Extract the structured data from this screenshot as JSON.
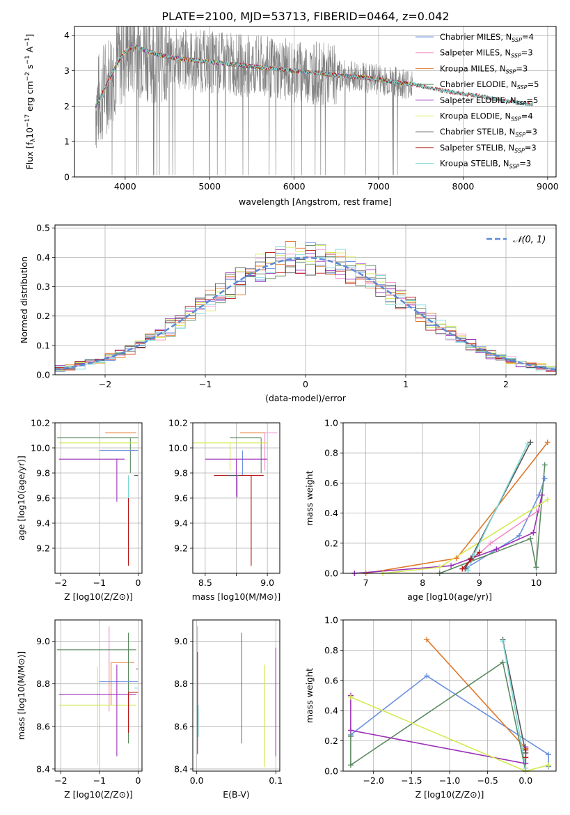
{
  "figure": {
    "title": "PLATE=2100, MJD=53713, FIBERID=0464, z=0.042"
  },
  "colors": {
    "Chabrier MILES": "#6a8fe0",
    "Salpeter MILES": "#f08fc8",
    "Kroupa MILES": "#e0782a",
    "Chabrier ELODIE": "#5a8a60",
    "Salpeter ELODIE": "#9b30b8",
    "Kroupa ELODIE": "#d4ea50",
    "Chabrier STELIB": "#555555",
    "Salpeter STELIB": "#b81818",
    "Kroupa STELIB": "#7fd8d8",
    "data": "#808080",
    "normal": "#5b8ad6",
    "grid": "#b0b0b0"
  },
  "chart_data": [
    {
      "id": "spectrum",
      "type": "line",
      "xlabel": "wavelength [Angstrom, rest frame]",
      "ylabel": "Flux [f_λ 10^-17 erg cm^-2 s^-1 A^-1]",
      "xlim": [
        3400,
        9100
      ],
      "ylim": [
        0,
        4.25
      ],
      "xticks": [
        4000,
        5000,
        6000,
        7000,
        8000,
        9000
      ],
      "yticks": [
        0,
        1,
        2,
        3,
        4
      ],
      "legend_position": "top-right",
      "legend": [
        {
          "model": "Chabrier MILES",
          "label": "Chabrier MILES, N",
          "sub": "SSP",
          "tail": "=4"
        },
        {
          "model": "Salpeter MILES",
          "label": "Salpeter MILES, N",
          "sub": "SSP",
          "tail": "=3"
        },
        {
          "model": "Kroupa MILES",
          "label": "Kroupa MILES, N",
          "sub": "SSP",
          "tail": "=3"
        },
        {
          "model": "Chabrier ELODIE",
          "label": "Chabrier ELODIE, N",
          "sub": "SSP",
          "tail": "=5"
        },
        {
          "model": "Salpeter ELODIE",
          "label": "Salpeter ELODIE, N",
          "sub": "SSP",
          "tail": "=5"
        },
        {
          "model": "Kroupa ELODIE",
          "label": "Kroupa ELODIE, N",
          "sub": "SSP",
          "tail": "=4"
        },
        {
          "model": "Chabrier STELIB",
          "label": "Chabrier STELIB, N",
          "sub": "SSP",
          "tail": "=3"
        },
        {
          "model": "Salpeter STELIB",
          "label": "Salpeter STELIB, N",
          "sub": "SSP",
          "tail": "=3"
        },
        {
          "model": "Kroupa STELIB",
          "label": "Kroupa STELIB, N",
          "sub": "SSP",
          "tail": "=3"
        }
      ],
      "continuum": {
        "x": [
          3650,
          3700,
          3800,
          3900,
          4000,
          4100,
          4200,
          4400,
          4600,
          4800,
          5000,
          5200,
          5400,
          5600,
          5800,
          6000,
          6200,
          6400,
          6600,
          6800,
          7000,
          7200,
          7400,
          7600,
          7800,
          8000,
          8200,
          8400,
          8600,
          8800
        ],
        "y": [
          2.0,
          2.2,
          2.7,
          3.2,
          3.55,
          3.7,
          3.6,
          3.45,
          3.35,
          3.3,
          3.25,
          3.2,
          3.15,
          3.1,
          3.05,
          3.0,
          2.95,
          2.9,
          2.85,
          2.82,
          2.75,
          2.68,
          2.62,
          2.52,
          2.42,
          2.35,
          2.28,
          2.2,
          2.12,
          2.05
        ]
      },
      "data_noise": 0.9,
      "data_range": [
        3650,
        7400
      ]
    },
    {
      "id": "residuals",
      "type": "line",
      "xlabel": "(data-model)/error",
      "ylabel": "Normed distribution",
      "xlim": [
        -2.5,
        2.5
      ],
      "ylim": [
        0,
        0.51
      ],
      "xticks": [
        -2,
        -1,
        0,
        1,
        2
      ],
      "yticks": [
        0.0,
        0.1,
        0.2,
        0.3,
        0.4,
        0.5
      ],
      "legend_position": "top-right",
      "legend_label": "𝒩(0, 1)",
      "bin_width": 0.1
    },
    {
      "id": "age-vs-z",
      "type": "scatter",
      "xlabel": "Z [log10(Z/Z⊙)]",
      "ylabel": "age  [log10(age/yr)]",
      "xlim": [
        -2.15,
        0.1
      ],
      "ylim": [
        9.0,
        10.2
      ],
      "xticks": [
        -2,
        -1,
        0
      ],
      "yticks": [
        9.2,
        9.4,
        9.6,
        9.8,
        10.0,
        10.2
      ],
      "points": [
        {
          "model": "Chabrier ELODIE",
          "x": -0.2,
          "xerr": [
            1.9,
            0.2
          ],
          "y": 10.08,
          "yerr": [
            0.28,
            0.0
          ]
        },
        {
          "model": "Kroupa MILES",
          "x": -0.45,
          "xerr": [
            0.4,
            0.4
          ],
          "y": 10.12,
          "yerr": [
            0.0,
            0.0
          ]
        },
        {
          "model": "Kroupa ELODIE",
          "x": -1.0,
          "xerr": [
            1.05,
            1.0
          ],
          "y": 10.04,
          "yerr": [
            0.22,
            0.0
          ]
        },
        {
          "model": "Chabrier MILES",
          "x": -0.5,
          "xerr": [
            0.5,
            0.5
          ],
          "y": 9.98,
          "yerr": [
            0.0,
            0.0
          ]
        },
        {
          "model": "Salpeter ELODIE",
          "x": -0.55,
          "xerr": [
            1.5,
            0.2
          ],
          "y": 9.91,
          "yerr": [
            0.34,
            0.0
          ]
        },
        {
          "model": "Salpeter STELIB",
          "x": -0.25,
          "xerr": [
            0.0,
            0.0
          ],
          "y": 9.78,
          "yerr": [
            0.72,
            0.0
          ]
        },
        {
          "model": "Chabrier STELIB",
          "x": -0.1,
          "xerr": [
            0.0,
            0.1
          ],
          "y": 9.78,
          "yerr": [
            0.0,
            0.0
          ]
        },
        {
          "model": "Kroupa STELIB",
          "x": -0.25,
          "xerr": [
            0.0,
            0.0
          ],
          "y": 9.78,
          "yerr": [
            0.18,
            0.0
          ]
        }
      ]
    },
    {
      "id": "age-vs-mass",
      "type": "scatter",
      "xlabel": "mass [log10(M/M⊙)]",
      "ylabel": "",
      "xlim": [
        8.4,
        9.1
      ],
      "ylim": [
        9.0,
        10.2
      ],
      "xticks": [
        8.5,
        8.75,
        9.0
      ],
      "xticklabels": [
        "8.5",
        "",
        "9.0"
      ],
      "yticks": [
        9.2,
        9.4,
        9.6,
        9.8,
        10.0,
        10.2
      ],
      "points": [
        {
          "model": "Salpeter MILES",
          "x": 8.98,
          "xerr": [
            0.0,
            0.1
          ],
          "y": 10.12,
          "yerr": [
            0.3,
            0.0
          ]
        },
        {
          "model": "Kroupa MILES",
          "x": 8.88,
          "xerr": [
            0.1,
            0.1
          ],
          "y": 10.12,
          "yerr": [
            0.0,
            0.0
          ]
        },
        {
          "model": "Chabrier ELODIE",
          "x": 8.95,
          "xerr": [
            0.25,
            0.0
          ],
          "y": 10.08,
          "yerr": [
            0.28,
            0.0
          ]
        },
        {
          "model": "Kroupa ELODIE",
          "x": 8.7,
          "xerr": [
            0.3,
            0.3
          ],
          "y": 10.04,
          "yerr": [
            0.22,
            0.0
          ]
        },
        {
          "model": "Chabrier MILES",
          "x": 8.8,
          "xerr": [
            0.0,
            0.0
          ],
          "y": 9.98,
          "yerr": [
            0.2,
            0.0
          ]
        },
        {
          "model": "Salpeter ELODIE",
          "x": 8.75,
          "xerr": [
            0.25,
            0.25
          ],
          "y": 9.91,
          "yerr": [
            0.3,
            0.0
          ]
        },
        {
          "model": "Salpeter STELIB",
          "x": 8.87,
          "xerr": [
            0.3,
            0.1
          ],
          "y": 9.78,
          "yerr": [
            0.72,
            0.0
          ]
        },
        {
          "model": "Chabrier STELIB",
          "x": 8.78,
          "xerr": [
            0.1,
            0.0
          ],
          "y": 9.78,
          "yerr": [
            0.0,
            0.0
          ]
        },
        {
          "model": "Kroupa STELIB",
          "x": 8.76,
          "xerr": [
            0.0,
            0.0
          ],
          "y": 9.78,
          "yerr": [
            0.18,
            0.0
          ]
        }
      ]
    },
    {
      "id": "weight-vs-age",
      "type": "line",
      "xlabel": "age  [log10(age/yr)]",
      "ylabel": "mass weight",
      "xlim": [
        6.6,
        10.35
      ],
      "ylim": [
        0,
        1.0
      ],
      "xticks": [
        7,
        8,
        9,
        10
      ],
      "yticks": [
        0.0,
        0.2,
        0.4,
        0.6,
        0.8,
        1.0
      ],
      "series": [
        {
          "model": "Chabrier MILES",
          "x": [
            8.75,
            9.7,
            10.05,
            10.15
          ],
          "y": [
            0.03,
            0.25,
            0.52,
            0.63
          ]
        },
        {
          "model": "Salpeter MILES",
          "x": [
            8.7,
            9.2,
            10.05
          ],
          "y": [
            0.03,
            0.2,
            0.42
          ]
        },
        {
          "model": "Kroupa MILES",
          "x": [
            7.0,
            8.6,
            10.2
          ],
          "y": [
            0.0,
            0.1,
            0.87
          ]
        },
        {
          "model": "Chabrier ELODIE",
          "x": [
            8.3,
            9.9,
            10.0,
            10.15
          ],
          "y": [
            0.0,
            0.23,
            0.04,
            0.72
          ]
        },
        {
          "model": "Salpeter ELODIE",
          "x": [
            6.8,
            8.5,
            9.3,
            9.95,
            10.1
          ],
          "y": [
            0.0,
            0.05,
            0.16,
            0.27,
            0.52
          ]
        },
        {
          "model": "Kroupa ELODIE",
          "x": [
            7.3,
            8.3,
            10.2
          ],
          "y": [
            0.0,
            0.04,
            0.49
          ]
        },
        {
          "model": "Chabrier STELIB",
          "x": [
            8.75,
            8.85,
            9.9
          ],
          "y": [
            0.03,
            0.1,
            0.87
          ]
        },
        {
          "model": "Salpeter STELIB",
          "x": [
            8.7,
            8.85,
            9.0
          ],
          "y": [
            0.03,
            0.09,
            0.14
          ]
        },
        {
          "model": "Kroupa STELIB",
          "x": [
            8.8,
            8.9,
            9.85
          ],
          "y": [
            0.02,
            0.12,
            0.86
          ]
        }
      ]
    },
    {
      "id": "mass-vs-z",
      "type": "scatter",
      "xlabel": "Z [log10(Z/Z⊙)]",
      "ylabel": "mass [log10(M/M⊙)]",
      "xlim": [
        -2.15,
        0.1
      ],
      "ylim": [
        8.39,
        9.1
      ],
      "xticks": [
        -2,
        -1,
        0
      ],
      "yticks": [
        8.4,
        8.6,
        8.8,
        9.0
      ],
      "points": [
        {
          "model": "Salpeter MILES",
          "x": -0.75,
          "xerr": [
            0.0,
            0.0
          ],
          "y": 9.0,
          "yerr": [
            0.33,
            0.07
          ]
        },
        {
          "model": "Kroupa MILES",
          "x": -0.7,
          "xerr": [
            0.0,
            0.6
          ],
          "y": 8.9,
          "yerr": [
            0.2,
            0.0
          ]
        },
        {
          "model": "Chabrier ELODIE",
          "x": -0.25,
          "xerr": [
            1.85,
            0.2
          ],
          "y": 8.96,
          "yerr": [
            0.44,
            0.08
          ]
        },
        {
          "model": "Chabrier STELIB",
          "x": -0.05,
          "xerr": [
            0.0,
            0.05
          ],
          "y": 8.87,
          "yerr": [
            0.0,
            0.0
          ]
        },
        {
          "model": "Kroupa ELODIE",
          "x": -1.05,
          "xerr": [
            1.0,
            1.0
          ],
          "y": 8.7,
          "yerr": [
            0.28,
            0.18
          ]
        },
        {
          "model": "Chabrier MILES",
          "x": -0.5,
          "xerr": [
            0.5,
            0.5
          ],
          "y": 8.81,
          "yerr": [
            0.0,
            0.0
          ]
        },
        {
          "model": "Salpeter ELODIE",
          "x": -0.55,
          "xerr": [
            1.5,
            0.5
          ],
          "y": 8.75,
          "yerr": [
            0.29,
            0.14
          ]
        },
        {
          "model": "Salpeter STELIB",
          "x": -0.25,
          "xerr": [
            0.0,
            0.25
          ],
          "y": 8.76,
          "yerr": [
            0.19,
            0.0
          ]
        },
        {
          "model": "Kroupa STELIB",
          "x": -0.1,
          "xerr": [
            0.0,
            0.1
          ],
          "y": 8.78,
          "yerr": [
            0.0,
            0.0
          ]
        }
      ]
    },
    {
      "id": "mass-vs-ebv",
      "type": "scatter",
      "xlabel": "E(B-V)",
      "ylabel": "",
      "xlim": [
        -0.005,
        0.105
      ],
      "ylim": [
        8.39,
        9.1
      ],
      "xticks": [
        0.0,
        0.1
      ],
      "yticks": [
        8.4,
        8.6,
        8.8,
        9.0
      ],
      "points": [
        {
          "model": "Salpeter MILES",
          "x": 0.001,
          "xerr": [
            0.0,
            0.0
          ],
          "y": 8.9,
          "yerr": [
            0.3,
            0.17
          ]
        },
        {
          "model": "Salpeter STELIB",
          "x": 0.001,
          "xerr": [
            0.0,
            0.0
          ],
          "y": 8.75,
          "yerr": [
            0.28,
            0.2
          ]
        },
        {
          "model": "Kroupa STELIB",
          "x": 0.002,
          "xerr": [
            0.0,
            0.0
          ],
          "y": 8.7,
          "yerr": [
            0.15,
            0.0
          ]
        },
        {
          "model": "Chabrier ELODIE",
          "x": 0.057,
          "xerr": [
            0.0,
            0.0
          ],
          "y": 8.8,
          "yerr": [
            0.28,
            0.24
          ]
        },
        {
          "model": "Kroupa ELODIE",
          "x": 0.086,
          "xerr": [
            0.0,
            0.0
          ],
          "y": 8.65,
          "yerr": [
            0.24,
            0.24
          ]
        },
        {
          "model": "Salpeter ELODIE",
          "x": 0.1,
          "xerr": [
            0.0,
            0.0
          ],
          "y": 8.7,
          "yerr": [
            0.24,
            0.27
          ]
        }
      ]
    },
    {
      "id": "weight-vs-z",
      "type": "line",
      "xlabel": "Z [log10(Z/Z⊙)]",
      "ylabel": "mass weight",
      "xlim": [
        -2.4,
        0.4
      ],
      "ylim": [
        0,
        1.0
      ],
      "xticks": [
        -2.0,
        -1.5,
        -1.0,
        -0.5,
        0.0
      ],
      "yticks": [
        0.0,
        0.2,
        0.4,
        0.6,
        0.8,
        1.0
      ],
      "series": [
        {
          "model": "Chabrier MILES",
          "x": [
            -2.3,
            -1.3,
            0.3,
            0.3
          ],
          "y": [
            0.24,
            0.63,
            0.11,
            0.03
          ]
        },
        {
          "model": "Kroupa MILES",
          "x": [
            -1.3,
            0.0,
            0.0
          ],
          "y": [
            0.87,
            0.15,
            0.0
          ]
        },
        {
          "model": "Chabrier ELODIE",
          "x": [
            -2.3,
            -2.3,
            -0.3,
            0.0
          ],
          "y": [
            0.23,
            0.04,
            0.72,
            0.0
          ]
        },
        {
          "model": "Salpeter ELODIE",
          "x": [
            -2.3,
            -2.3,
            0.0,
            0.0
          ],
          "y": [
            0.5,
            0.27,
            0.05,
            0.16
          ]
        },
        {
          "model": "Kroupa ELODIE",
          "x": [
            -2.3,
            0.0,
            0.3
          ],
          "y": [
            0.49,
            0.0,
            0.04
          ]
        },
        {
          "model": "Chabrier STELIB",
          "x": [
            -0.3,
            0.0
          ],
          "y": [
            0.87,
            0.12
          ]
        },
        {
          "model": "Salpeter STELIB",
          "x": [
            0.0,
            0.0
          ],
          "y": [
            0.14,
            0.09
          ]
        },
        {
          "model": "Kroupa STELIB",
          "x": [
            -0.3,
            0.0
          ],
          "y": [
            0.86,
            0.02
          ]
        }
      ]
    }
  ]
}
